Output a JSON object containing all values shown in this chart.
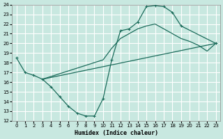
{
  "xlabel": "Humidex (Indice chaleur)",
  "bg_color": "#c8e8e0",
  "grid_color": "#ffffff",
  "line_color": "#1a6b5a",
  "xlim_min": -0.5,
  "xlim_max": 23.5,
  "ylim_min": 12,
  "ylim_max": 24,
  "xticks": [
    0,
    1,
    2,
    3,
    4,
    5,
    6,
    7,
    8,
    9,
    10,
    11,
    12,
    13,
    14,
    15,
    16,
    17,
    18,
    19,
    20,
    21,
    22,
    23
  ],
  "yticks": [
    12,
    13,
    14,
    15,
    16,
    17,
    18,
    19,
    20,
    21,
    22,
    23,
    24
  ],
  "line1_x": [
    0,
    1,
    2,
    3,
    4,
    5,
    6,
    7,
    8,
    9,
    10,
    11,
    12,
    13,
    14,
    15,
    16,
    17,
    18,
    19,
    23
  ],
  "line1_y": [
    18.5,
    17.0,
    16.7,
    16.3,
    15.5,
    14.5,
    13.5,
    12.8,
    12.5,
    12.5,
    14.3,
    18.3,
    21.3,
    21.5,
    22.2,
    23.8,
    23.9,
    23.8,
    23.2,
    21.8,
    20.0
  ],
  "line2_x": [
    3,
    10,
    11,
    12,
    13,
    14,
    15,
    16,
    17,
    18,
    19,
    20,
    21,
    22,
    23
  ],
  "line2_y": [
    16.3,
    18.3,
    19.5,
    20.5,
    21.0,
    21.5,
    21.8,
    22.0,
    21.5,
    21.0,
    20.5,
    20.2,
    19.8,
    19.2,
    20.0
  ],
  "line3_x": [
    3,
    23
  ],
  "line3_y": [
    16.3,
    20.0
  ]
}
